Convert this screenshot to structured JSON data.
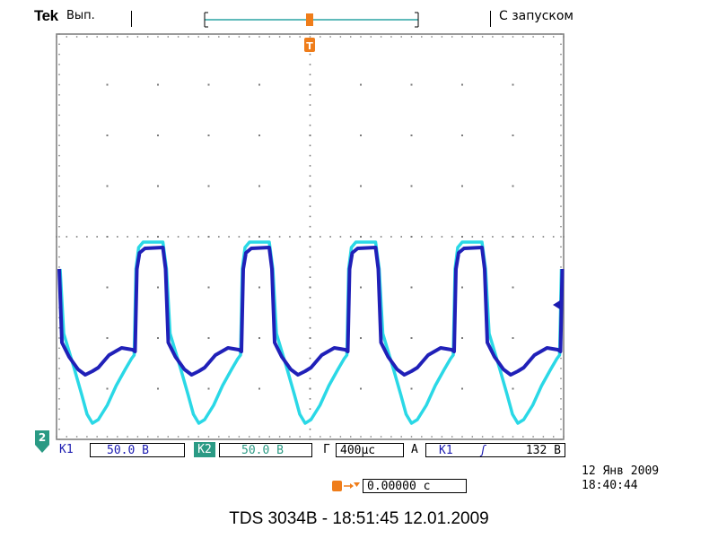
{
  "header": {
    "brand": "Tek",
    "run_state": "Вып.",
    "trigger_mode": "С запуском"
  },
  "markers": {
    "trigger_label": "T",
    "channel2_label": "2"
  },
  "status_bar": {
    "ch1_label": "К1",
    "ch1_scale": "50.0 В",
    "ch2_label": "К2",
    "ch2_scale": "50.0 В",
    "timebase_label": "Г",
    "timebase_value": "400μс",
    "trigger_type": "А",
    "trigger_source": "К1",
    "trigger_slope_symbol": "ʃ",
    "trigger_level": "132 В"
  },
  "position_readout": {
    "value": "0.00000 с"
  },
  "datetime": {
    "date": "12 Янв 2009",
    "time": "18:40:44"
  },
  "footer": {
    "caption": "TDS 3034B - 18:51:45   12.01.2009"
  },
  "colors": {
    "ch1_trace": "#2ad8e6",
    "ch2_trace": "#2020b8",
    "trigger_marker": "#ef7d1a",
    "grid": "#7a7a7a"
  }
}
